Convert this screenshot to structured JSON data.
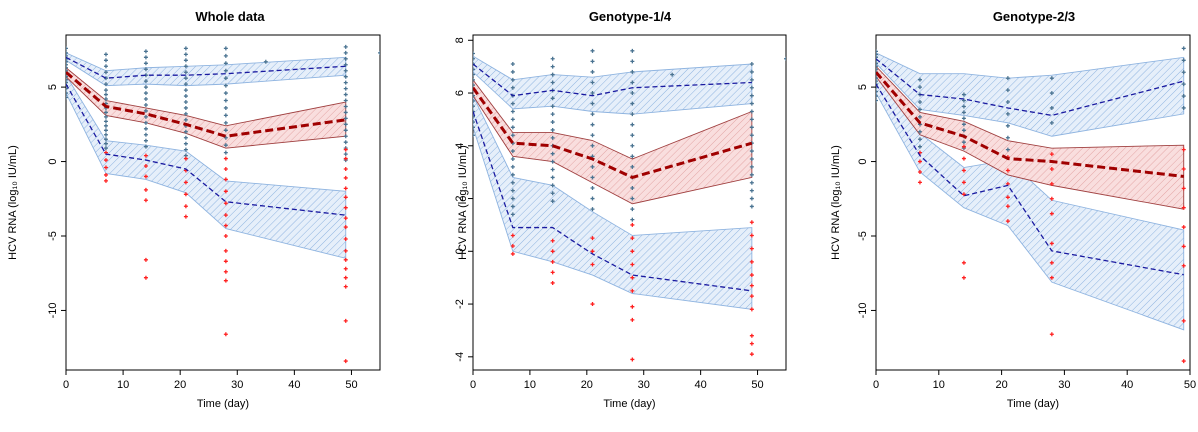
{
  "colors": {
    "observed_above_lloq": "#4a7391",
    "observed_below_lloq": "#ff2020",
    "median_line": "#a00000",
    "median_band_fill": "#f4d0d0",
    "median_band_edge": "#a04040",
    "percentile_line": "#1a1aa0",
    "percentile_band_fill": "#d4e4f6",
    "percentile_band_edge": "#8fb4e0"
  },
  "chart_data": [
    {
      "type": "scatter",
      "title": "Whole data",
      "xlabel": "Time (day)",
      "ylabel": "HCV RNA (log₁₀ IU/mL)",
      "xlim": [
        0,
        55
      ],
      "ylim": [
        -14,
        8.5
      ],
      "xticks": [
        "0",
        "10",
        "20",
        "30",
        "40",
        "50"
      ],
      "yticks": [
        "-10",
        "-5",
        "0",
        "5"
      ],
      "time": [
        0,
        7,
        14,
        21,
        28,
        49
      ],
      "series": [
        {
          "values": [
            6.0,
            3.7,
            3.2,
            2.5,
            1.7,
            2.8
          ]
        },
        {
          "values": [
            7.0,
            5.6,
            5.8,
            5.8,
            5.9,
            6.4
          ]
        },
        {
          "values": [
            5.2,
            0.5,
            0.1,
            -0.5,
            -2.7,
            -3.6
          ]
        }
      ],
      "bands": {
        "median": {
          "lo": [
            5.7,
            3.1,
            2.6,
            1.9,
            0.9,
            1.7
          ],
          "hi": [
            6.3,
            4.1,
            3.6,
            3.1,
            2.4,
            4.0
          ]
        },
        "upper": {
          "lo": [
            6.8,
            5.1,
            5.2,
            5.1,
            5.2,
            5.8
          ],
          "hi": [
            7.3,
            6.1,
            6.3,
            6.4,
            6.5,
            7.0
          ]
        },
        "lower": {
          "lo": [
            4.6,
            -0.8,
            -1.2,
            -2.1,
            -4.5,
            -6.5
          ],
          "hi": [
            5.8,
            1.4,
            1.1,
            0.7,
            -1.3,
            -2.0
          ]
        }
      },
      "observations_above_lloq": [
        {
          "x": 0,
          "y": [
            7.6,
            7.3,
            7.1,
            6.9,
            6.7,
            6.5,
            6.3,
            6.1,
            5.9,
            5.7,
            5.5,
            5.3,
            5.1,
            4.9,
            4.6,
            4.3
          ]
        },
        {
          "x": 7,
          "y": [
            7.2,
            6.8,
            6.4,
            6.0,
            5.6,
            5.2,
            4.8,
            4.5,
            4.2,
            3.9,
            3.6,
            3.3,
            3.0,
            2.7,
            2.4,
            2.1,
            1.8,
            1.5,
            1.2,
            0.9
          ]
        },
        {
          "x": 14,
          "y": [
            7.4,
            7.0,
            6.6,
            6.2,
            5.8,
            5.4,
            5.0,
            4.6,
            4.2,
            3.8,
            3.4,
            3.0,
            2.6,
            2.2,
            1.8,
            1.4,
            1.0
          ]
        },
        {
          "x": 21,
          "y": [
            7.6,
            7.2,
            6.8,
            6.4,
            6.0,
            5.6,
            5.2,
            4.8,
            4.4,
            4.0,
            3.6,
            3.2,
            2.8,
            2.4,
            2.0,
            1.6,
            1.2,
            0.8,
            0.4
          ]
        },
        {
          "x": 28,
          "y": [
            7.6,
            7.1,
            6.6,
            6.1,
            5.6,
            5.1,
            4.6,
            4.1,
            3.6,
            3.1,
            2.6,
            2.1,
            1.6,
            1.1,
            0.6
          ]
        },
        {
          "x": 49,
          "y": [
            7.7,
            7.3,
            6.9,
            6.5,
            6.1,
            5.7,
            5.3,
            4.9,
            4.5,
            4.1,
            3.7,
            3.3,
            2.9,
            2.5,
            2.1,
            1.7,
            1.3,
            0.9,
            0.5,
            0.1
          ]
        },
        {
          "x": 35,
          "y": [
            6.7
          ]
        },
        {
          "x": 55,
          "y": [
            7.3
          ]
        }
      ],
      "observations_below_lloq": [
        {
          "x": 7,
          "y": [
            0.6,
            0.1,
            -0.4,
            -0.9,
            -1.3
          ]
        },
        {
          "x": 14,
          "y": [
            0.4,
            -0.3,
            -1.0,
            -1.9,
            -2.6,
            -6.6,
            -7.8
          ]
        },
        {
          "x": 21,
          "y": [
            0.2,
            -0.6,
            -1.4,
            -2.2,
            -3.0,
            -3.7
          ]
        },
        {
          "x": 28,
          "y": [
            0.2,
            -0.5,
            -1.2,
            -2.0,
            -2.8,
            -3.6,
            -4.3,
            -5.0,
            -6.0,
            -6.7,
            -7.4,
            -8.0,
            -11.6
          ]
        },
        {
          "x": 49,
          "y": [
            0.8,
            0.2,
            -0.5,
            -1.1,
            -1.8,
            -2.4,
            -3.1,
            -3.8,
            -4.4,
            -5.2,
            -6.0,
            -6.6,
            -7.2,
            -7.8,
            -8.4,
            -10.7,
            -13.4
          ]
        }
      ]
    },
    {
      "type": "scatter",
      "title": "Genotype-1/4",
      "xlabel": "Time (day)",
      "ylabel": "HCV RNA (log₁₀ IU/mL)",
      "xlim": [
        0,
        55
      ],
      "ylim": [
        -4.5,
        8.2
      ],
      "xticks": [
        "0",
        "10",
        "20",
        "30",
        "40",
        "50"
      ],
      "yticks": [
        "-4",
        "-2",
        "0",
        "2",
        "4",
        "6",
        "8"
      ],
      "time": [
        0,
        7,
        14,
        21,
        28,
        49
      ],
      "series": [
        {
          "values": [
            6.2,
            4.1,
            4.0,
            3.5,
            2.8,
            4.1
          ]
        },
        {
          "values": [
            7.1,
            5.9,
            6.1,
            5.9,
            6.2,
            6.4
          ]
        },
        {
          "values": [
            5.3,
            0.9,
            0.9,
            -0.1,
            -0.9,
            -1.5
          ]
        }
      ],
      "bands": {
        "median": {
          "lo": [
            5.9,
            3.6,
            3.4,
            2.6,
            1.8,
            2.8
          ],
          "hi": [
            6.5,
            4.5,
            4.5,
            4.2,
            3.5,
            5.3
          ]
        },
        "upper": {
          "lo": [
            6.8,
            5.4,
            5.5,
            5.3,
            5.2,
            5.6
          ],
          "hi": [
            7.4,
            6.5,
            6.7,
            6.6,
            6.8,
            7.1
          ]
        },
        "lower": {
          "lo": [
            4.7,
            0.0,
            -0.4,
            -0.9,
            -1.6,
            -2.2
          ],
          "hi": [
            5.9,
            2.8,
            2.5,
            1.5,
            0.6,
            0.9
          ]
        }
      },
      "observations_above_lloq": [
        {
          "x": 0,
          "y": [
            7.5,
            7.3,
            7.1,
            6.9,
            6.7,
            6.5,
            6.3,
            6.1,
            5.9,
            5.7,
            5.5,
            5.3,
            5.1,
            4.9,
            4.7,
            4.4
          ]
        },
        {
          "x": 7,
          "y": [
            7.1,
            6.8,
            6.5,
            6.2,
            5.9,
            5.6,
            5.3,
            5.0,
            4.7,
            4.4,
            4.1,
            3.8,
            3.5,
            3.2,
            2.9,
            2.6,
            2.3,
            2.0,
            1.7,
            1.4
          ]
        },
        {
          "x": 14,
          "y": [
            7.3,
            7.0,
            6.7,
            6.4,
            6.1,
            5.8,
            5.5,
            5.2,
            4.9,
            4.6,
            4.3,
            4.0,
            3.7,
            3.4,
            3.1,
            2.8,
            2.5,
            2.2,
            1.9
          ]
        },
        {
          "x": 21,
          "y": [
            7.6,
            7.2,
            6.8,
            6.4,
            6.0,
            5.6,
            5.2,
            4.8,
            4.4,
            4.0,
            3.6,
            3.2,
            2.8,
            2.4,
            2.0,
            1.6
          ]
        },
        {
          "x": 28,
          "y": [
            7.6,
            7.2,
            6.8,
            6.4,
            6.0,
            5.6,
            5.2,
            4.8,
            4.4,
            4.0,
            3.6,
            3.2,
            2.8,
            2.4,
            2.0,
            1.6,
            1.2
          ]
        },
        {
          "x": 49,
          "y": [
            7.1,
            6.8,
            6.5,
            6.2,
            5.9,
            5.6,
            5.3,
            5.0,
            4.7,
            4.4,
            4.1,
            3.8,
            3.5,
            3.2,
            2.9,
            2.6,
            2.3,
            2.0,
            1.7
          ]
        },
        {
          "x": 35,
          "y": [
            6.7
          ]
        },
        {
          "x": 55,
          "y": [
            7.3
          ]
        }
      ],
      "observations_below_lloq": [
        {
          "x": 7,
          "y": [
            0.6,
            0.2,
            -0.1
          ]
        },
        {
          "x": 14,
          "y": [
            0.4,
            0.0,
            -0.4,
            -0.8,
            -1.2
          ]
        },
        {
          "x": 21,
          "y": [
            0.5,
            0.0,
            -0.5,
            -2.0
          ]
        },
        {
          "x": 28,
          "y": [
            1.0,
            0.5,
            0.0,
            -0.5,
            -1.0,
            -1.5,
            -2.1,
            -2.6,
            -4.1
          ]
        },
        {
          "x": 49,
          "y": [
            1.1,
            0.6,
            0.1,
            -0.4,
            -0.9,
            -1.3,
            -1.7,
            -2.2,
            -3.2,
            -3.5,
            -3.9
          ]
        }
      ]
    },
    {
      "type": "scatter",
      "title": "Genotype-2/3",
      "xlabel": "Time (day)",
      "ylabel": "HCV RNA (log₁₀ IU/mL)",
      "xlim": [
        0,
        50
      ],
      "ylim": [
        -14,
        8.5
      ],
      "xticks": [
        "0",
        "10",
        "20",
        "30",
        "40",
        "50"
      ],
      "yticks": [
        "-10",
        "-5",
        "0",
        "5"
      ],
      "time": [
        0,
        7,
        14,
        21,
        28,
        49
      ],
      "series": [
        {
          "values": [
            6.0,
            2.6,
            1.7,
            0.2,
            0.0,
            -1.0
          ]
        },
        {
          "values": [
            6.9,
            4.5,
            4.2,
            3.6,
            3.1,
            5.4
          ]
        },
        {
          "values": [
            5.2,
            0.4,
            -2.3,
            -1.6,
            -6.0,
            -7.6
          ]
        }
      ],
      "bands": {
        "median": {
          "lo": [
            5.7,
            1.8,
            0.7,
            -0.9,
            -1.6,
            -3.2
          ],
          "hi": [
            6.4,
            3.3,
            2.7,
            1.4,
            0.9,
            1.1
          ]
        },
        "upper": {
          "lo": [
            6.6,
            3.5,
            3.1,
            2.6,
            1.7,
            3.2
          ],
          "hi": [
            7.3,
            5.9,
            5.9,
            5.6,
            5.8,
            7.0
          ]
        },
        "lower": {
          "lo": [
            4.6,
            -0.7,
            -3.1,
            -4.3,
            -8.1,
            -11.3
          ],
          "hi": [
            5.8,
            1.9,
            -0.4,
            0.1,
            -2.6,
            -4.6
          ]
        }
      },
      "observations_above_lloq": [
        {
          "x": 0,
          "y": [
            7.4,
            7.2,
            7.0,
            6.8,
            6.6,
            6.4,
            6.2,
            6.0,
            5.8,
            5.6,
            5.4,
            5.2,
            5.0,
            4.7,
            4.4,
            4.1
          ]
        },
        {
          "x": 7,
          "y": [
            5.5,
            5.0,
            4.5,
            4.0,
            3.5,
            3.0,
            2.5,
            2.0,
            1.5,
            1.0
          ]
        },
        {
          "x": 14,
          "y": [
            4.5,
            4.1,
            3.7,
            3.3,
            2.9,
            2.5,
            2.1,
            1.7,
            1.3,
            0.9
          ]
        },
        {
          "x": 21,
          "y": [
            5.6,
            4.8,
            4.0,
            3.2,
            2.4,
            1.6,
            0.8
          ]
        },
        {
          "x": 28,
          "y": [
            5.6,
            4.6,
            3.6,
            2.6
          ]
        },
        {
          "x": 49,
          "y": [
            7.6,
            6.8,
            6.0,
            5.2,
            4.4,
            3.6
          ]
        }
      ],
      "observations_below_lloq": [
        {
          "x": 7,
          "y": [
            0.6,
            0.0,
            -0.7,
            -1.4
          ]
        },
        {
          "x": 14,
          "y": [
            1.0,
            0.2,
            -0.6,
            -1.4,
            -2.2,
            -6.8,
            -7.8
          ]
        },
        {
          "x": 21,
          "y": [
            0.3,
            -0.6,
            -1.5,
            -2.4,
            -3.0,
            -4.0
          ]
        },
        {
          "x": 28,
          "y": [
            0.5,
            -0.5,
            -1.5,
            -2.5,
            -3.5,
            -5.5,
            -6.8,
            -7.8,
            -11.6
          ]
        },
        {
          "x": 49,
          "y": [
            0.8,
            -0.5,
            -1.8,
            -3.1,
            -4.4,
            -5.7,
            -7.0,
            -10.7,
            -13.4
          ]
        }
      ]
    }
  ]
}
